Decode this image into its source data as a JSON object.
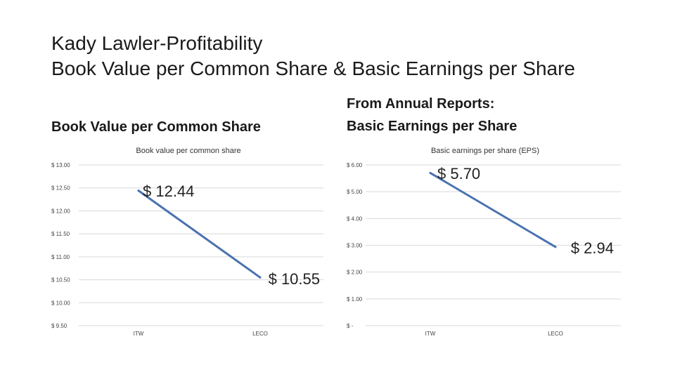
{
  "slide": {
    "title_line1": "Kady Lawler-Profitability",
    "title_line2": "Book Value per Common Share & Basic Earnings per Share",
    "left_heading": "Book Value per Common Share",
    "right_heading_line1": "From Annual Reports:",
    "right_heading_line2": "Basic Earnings per Share"
  },
  "chart_data": [
    {
      "type": "line",
      "title": "Book value per common share",
      "categories": [
        "ITW",
        "LECO"
      ],
      "values": [
        12.44,
        10.55
      ],
      "data_labels": [
        "$ 12.44",
        "$ 10.55"
      ],
      "ylim": [
        9.5,
        13.0
      ],
      "yticks": [
        13.0,
        12.5,
        12.0,
        11.5,
        11.0,
        10.5,
        10.0,
        9.5
      ],
      "ytick_labels": [
        "$ 13.00",
        "$ 12.50",
        "$ 12.00",
        "$ 11.50",
        "$ 11.00",
        "$ 10.50",
        "$ 10.00",
        "$ 9.50"
      ],
      "grid": true,
      "line_color": "#4a72b0"
    },
    {
      "type": "line",
      "title": "Basic earnings per share (EPS)",
      "categories": [
        "ITW",
        "LECO"
      ],
      "values": [
        5.7,
        2.94
      ],
      "data_labels": [
        "$ 5.70",
        "$ 2.94"
      ],
      "ylim": [
        0,
        6.0
      ],
      "yticks": [
        6.0,
        5.0,
        4.0,
        3.0,
        2.0,
        1.0,
        0
      ],
      "ytick_labels": [
        "$ 6.00",
        "$ 5.00",
        "$ 4.00",
        "$ 3.00",
        "$ 2.00",
        "$ 1.00",
        "$ -"
      ],
      "grid": true,
      "line_color": "#4a72b0"
    }
  ]
}
